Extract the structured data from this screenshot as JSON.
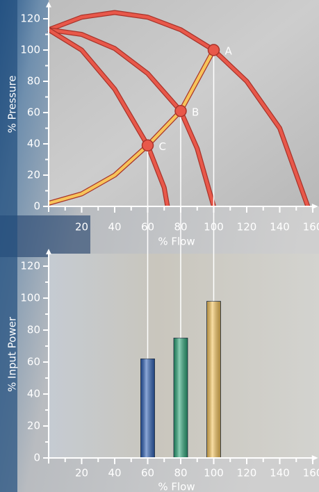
{
  "chart_data": [
    {
      "type": "line",
      "ylabel": "% Pressure",
      "xlabel": "% Flow",
      "xlim": [
        0,
        162
      ],
      "ylim": [
        0,
        130
      ],
      "xticks": [
        20,
        40,
        60,
        80,
        100,
        120,
        140,
        160
      ],
      "yticks": [
        0,
        20,
        40,
        60,
        80,
        100,
        120
      ],
      "series": [
        {
          "color": "#e8584a",
          "x": [
            0,
            20,
            40,
            60,
            80,
            100,
            120,
            140,
            157
          ],
          "values": [
            113,
            121,
            124,
            121,
            113,
            100,
            80,
            50,
            0
          ]
        },
        {
          "color": "#e8584a",
          "x": [
            0,
            20,
            40,
            60,
            80,
            90,
            100
          ],
          "values": [
            113,
            110,
            101,
            85,
            61,
            37,
            0
          ]
        },
        {
          "color": "#e8584a",
          "x": [
            0,
            20,
            40,
            60,
            70,
            72
          ],
          "values": [
            113,
            100,
            75,
            39,
            12,
            0
          ]
        },
        {
          "color": "#f6c45a",
          "x": [
            0,
            20,
            40,
            60,
            80,
            100
          ],
          "values": [
            2,
            8,
            20,
            39,
            61,
            100
          ]
        }
      ],
      "points": {
        "color": "#e8584a",
        "x": [
          100,
          80,
          60
        ],
        "values": [
          100,
          61,
          39
        ],
        "labels": [
          "A",
          "B",
          "C"
        ]
      }
    },
    {
      "type": "bar",
      "ylabel": "% Input Power",
      "xlabel": "% Flow",
      "xlim": [
        0,
        162
      ],
      "ylim": [
        0,
        130
      ],
      "xticks": [
        20,
        40,
        60,
        80,
        100,
        120,
        140,
        160
      ],
      "yticks": [
        0,
        20,
        40,
        60,
        80,
        100,
        120
      ],
      "x": [
        60,
        80,
        100
      ],
      "values": [
        62,
        75,
        98
      ],
      "colors": [
        "#2f62b8",
        "#2ea87a",
        "#f6c45a"
      ]
    }
  ]
}
